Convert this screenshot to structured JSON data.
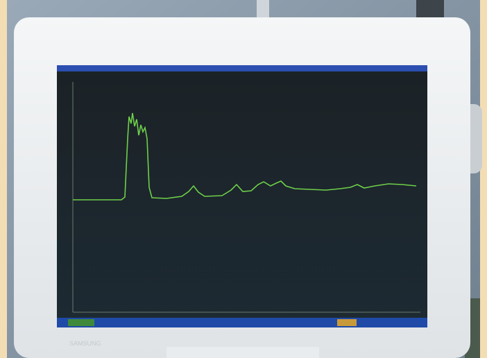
{
  "photo": {
    "brand": "SAMSUNG"
  }
}
